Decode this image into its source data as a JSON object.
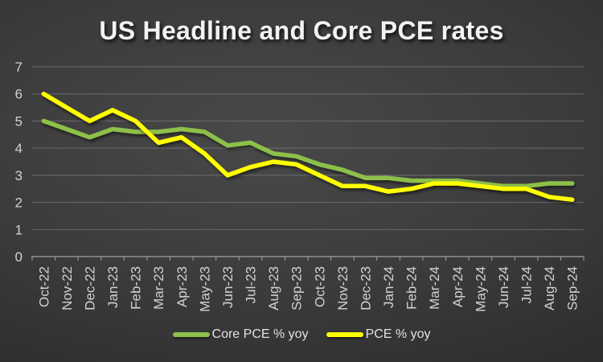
{
  "chart_data": {
    "type": "line",
    "title": "US Headline and Core PCE rates",
    "categories": [
      "Oct-22",
      "Nov-22",
      "Dec-22",
      "Jan-23",
      "Feb-23",
      "Mar-23",
      "Apr-23",
      "May-23",
      "Jun-23",
      "Jul-23",
      "Aug-23",
      "Sep-23",
      "Oct-23",
      "Nov-23",
      "Dec-23",
      "Jan-24",
      "Feb-24",
      "Mar-24",
      "Apr-24",
      "May-24",
      "Jun-24",
      "Jul-24",
      "Aug-24",
      "Sep-24"
    ],
    "series": [
      {
        "name": "Core PCE % yoy",
        "color": "#8DC04A",
        "values": [
          5.0,
          4.7,
          4.4,
          4.7,
          4.6,
          4.6,
          4.7,
          4.6,
          4.1,
          4.2,
          3.8,
          3.7,
          3.4,
          3.2,
          2.9,
          2.9,
          2.8,
          2.8,
          2.8,
          2.7,
          2.6,
          2.6,
          2.7,
          2.7
        ]
      },
      {
        "name": "PCE % yoy",
        "color": "#FFFF00",
        "values": [
          6.0,
          5.5,
          5.0,
          5.4,
          5.0,
          4.2,
          4.4,
          3.8,
          3.0,
          3.3,
          3.5,
          3.4,
          3.0,
          2.6,
          2.6,
          2.4,
          2.5,
          2.7,
          2.7,
          2.6,
          2.5,
          2.5,
          2.2,
          2.1
        ]
      }
    ],
    "xlabel": "",
    "ylabel": "",
    "ylim": [
      0,
      7
    ],
    "y_ticks": [
      0,
      1,
      2,
      3,
      4,
      5,
      6,
      7
    ],
    "grid": "horizontal",
    "legend_position": "bottom",
    "x_label_rotation": -90
  },
  "colors": {
    "background_center": "#494949",
    "background_edge": "#252525",
    "gridline": "#7b7b7b",
    "axis_line": "#a0a0a0",
    "axis_text": "#d2d2d2",
    "title_text": "#f2f2f2",
    "legend_text": "#e2e2e2"
  }
}
